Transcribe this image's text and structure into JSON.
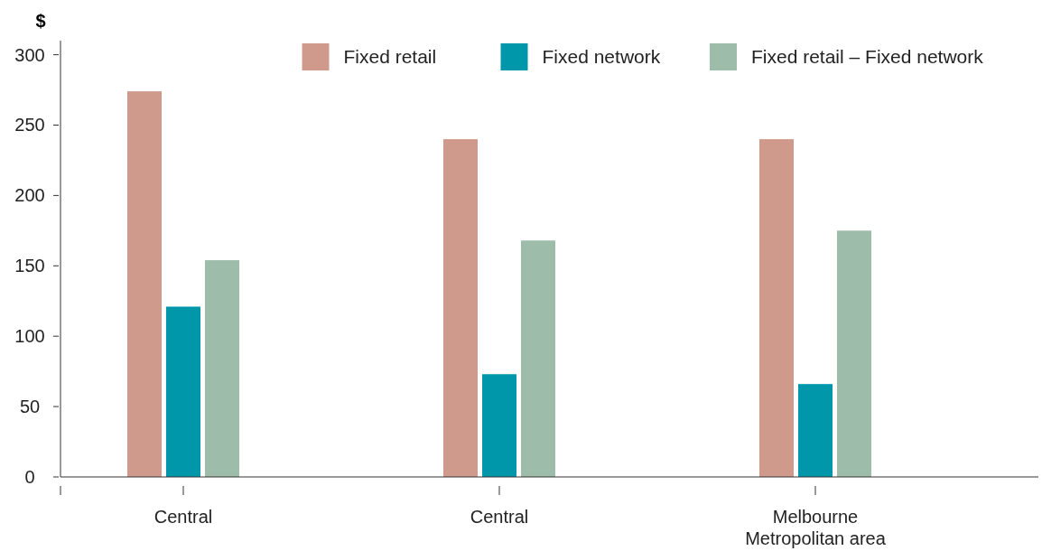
{
  "chart_data": {
    "type": "bar",
    "ylabel": "$",
    "categories": [
      "Central",
      "Central",
      "Melbourne Metropolitan area"
    ],
    "series": [
      {
        "name": "Fixed retail",
        "color": "#cf9a8c",
        "values": [
          274,
          240,
          240
        ]
      },
      {
        "name": "Fixed network",
        "color": "#0097ab",
        "values": [
          121,
          73,
          66
        ]
      },
      {
        "name": "Fixed retail – Fixed network",
        "color": "#9dbdaa",
        "values": [
          154,
          168,
          175
        ]
      }
    ],
    "ylim": [
      0,
      310
    ],
    "yticks": [
      0,
      50,
      100,
      150,
      200,
      250,
      300
    ],
    "legend": "top right",
    "grid": false
  }
}
